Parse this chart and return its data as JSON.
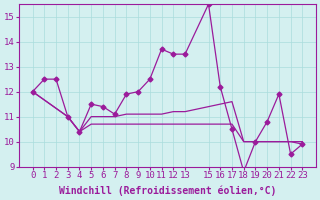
{
  "xlabel": "Windchill (Refroidissement éolien,°C)",
  "bg_color": "#d4f0f0",
  "line_color": "#9b1b9b",
  "grid_color": "#aadddd",
  "x": [
    0,
    1,
    2,
    3,
    4,
    5,
    6,
    7,
    8,
    9,
    10,
    11,
    12,
    13,
    15,
    16,
    17,
    18,
    19,
    20,
    21,
    22,
    23
  ],
  "xtick_positions": [
    0,
    1,
    2,
    3,
    4,
    5,
    6,
    7,
    8,
    9,
    10,
    11,
    12,
    13,
    15,
    16,
    17,
    18,
    19,
    20,
    21,
    22,
    23
  ],
  "xtick_labels": [
    "0",
    "1",
    "2",
    "3",
    "4",
    "5",
    "6",
    "7",
    "8",
    "9",
    "10",
    "11",
    "12",
    "13",
    "15",
    "16",
    "17",
    "18",
    "19",
    "20",
    "21",
    "22",
    "23"
  ],
  "line1": [
    12.0,
    12.5,
    12.5,
    11.0,
    10.4,
    11.5,
    11.4,
    11.1,
    11.9,
    12.0,
    12.5,
    13.7,
    13.5,
    13.5,
    15.5,
    12.2,
    10.5,
    8.8,
    10.0,
    10.8,
    11.9,
    9.5,
    9.9
  ],
  "line2": [
    12.0,
    null,
    null,
    11.0,
    10.4,
    11.0,
    11.0,
    11.0,
    11.1,
    11.1,
    11.1,
    11.1,
    11.2,
    11.2,
    11.4,
    11.5,
    11.6,
    10.0,
    10.0,
    10.0,
    10.0,
    10.0,
    10.0
  ],
  "line3": [
    12.0,
    null,
    null,
    11.0,
    10.4,
    10.7,
    10.7,
    10.7,
    10.7,
    10.7,
    10.7,
    10.7,
    10.7,
    10.7,
    10.7,
    10.7,
    10.7,
    10.0,
    10.0,
    10.0,
    10.0,
    10.0,
    9.9
  ],
  "ylim": [
    9.0,
    15.5
  ],
  "yticks": [
    9,
    10,
    11,
    12,
    13,
    14,
    15
  ],
  "axis_fontsize": 7,
  "tick_fontsize": 6.5
}
